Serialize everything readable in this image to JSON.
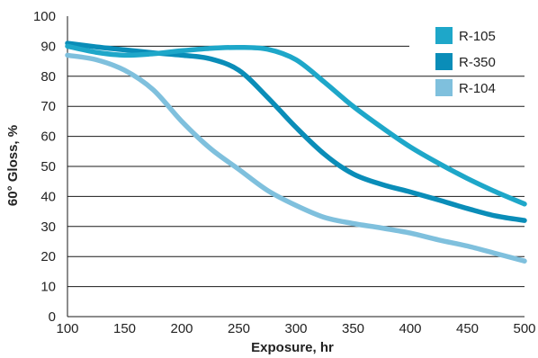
{
  "chart_data": {
    "type": "line",
    "title": "",
    "xlabel": "Exposure, hr",
    "ylabel": "60° Gloss, %",
    "xlim": [
      100,
      500
    ],
    "ylim": [
      0,
      100
    ],
    "x_ticks": [
      100,
      150,
      200,
      250,
      300,
      350,
      400,
      450,
      500
    ],
    "y_ticks": [
      0,
      10,
      20,
      30,
      40,
      50,
      60,
      70,
      80,
      90,
      100
    ],
    "grid": "horizontal",
    "legend_position": "top-right",
    "series": [
      {
        "name": "R-105",
        "color": "#1ea7c9",
        "x": [
          100,
          125,
          150,
          175,
          200,
          225,
          250,
          275,
          300,
          325,
          350,
          375,
          400,
          425,
          450,
          475,
          500
        ],
        "y": [
          90,
          88,
          87,
          87.5,
          88.5,
          89.3,
          89.6,
          89,
          85.5,
          78,
          70,
          63,
          56.5,
          51,
          46,
          41.5,
          37.5
        ]
      },
      {
        "name": "R-350",
        "color": "#0a8db8",
        "x": [
          100,
          125,
          150,
          175,
          200,
          225,
          250,
          275,
          300,
          325,
          350,
          375,
          400,
          425,
          450,
          475,
          500
        ],
        "y": [
          91,
          89.8,
          88.8,
          87.8,
          87,
          85.8,
          82,
          73,
          63,
          54,
          47.5,
          44,
          41.5,
          38.8,
          36,
          33.5,
          32
        ]
      },
      {
        "name": "R-104",
        "color": "#7fc0dd",
        "x": [
          100,
          125,
          150,
          175,
          200,
          225,
          250,
          275,
          300,
          325,
          350,
          375,
          400,
          425,
          450,
          475,
          500
        ],
        "y": [
          87,
          85.5,
          82,
          75.5,
          65,
          56,
          49,
          42,
          37,
          33,
          31,
          29.5,
          27.8,
          25.5,
          23.5,
          21,
          18.5
        ]
      }
    ]
  }
}
